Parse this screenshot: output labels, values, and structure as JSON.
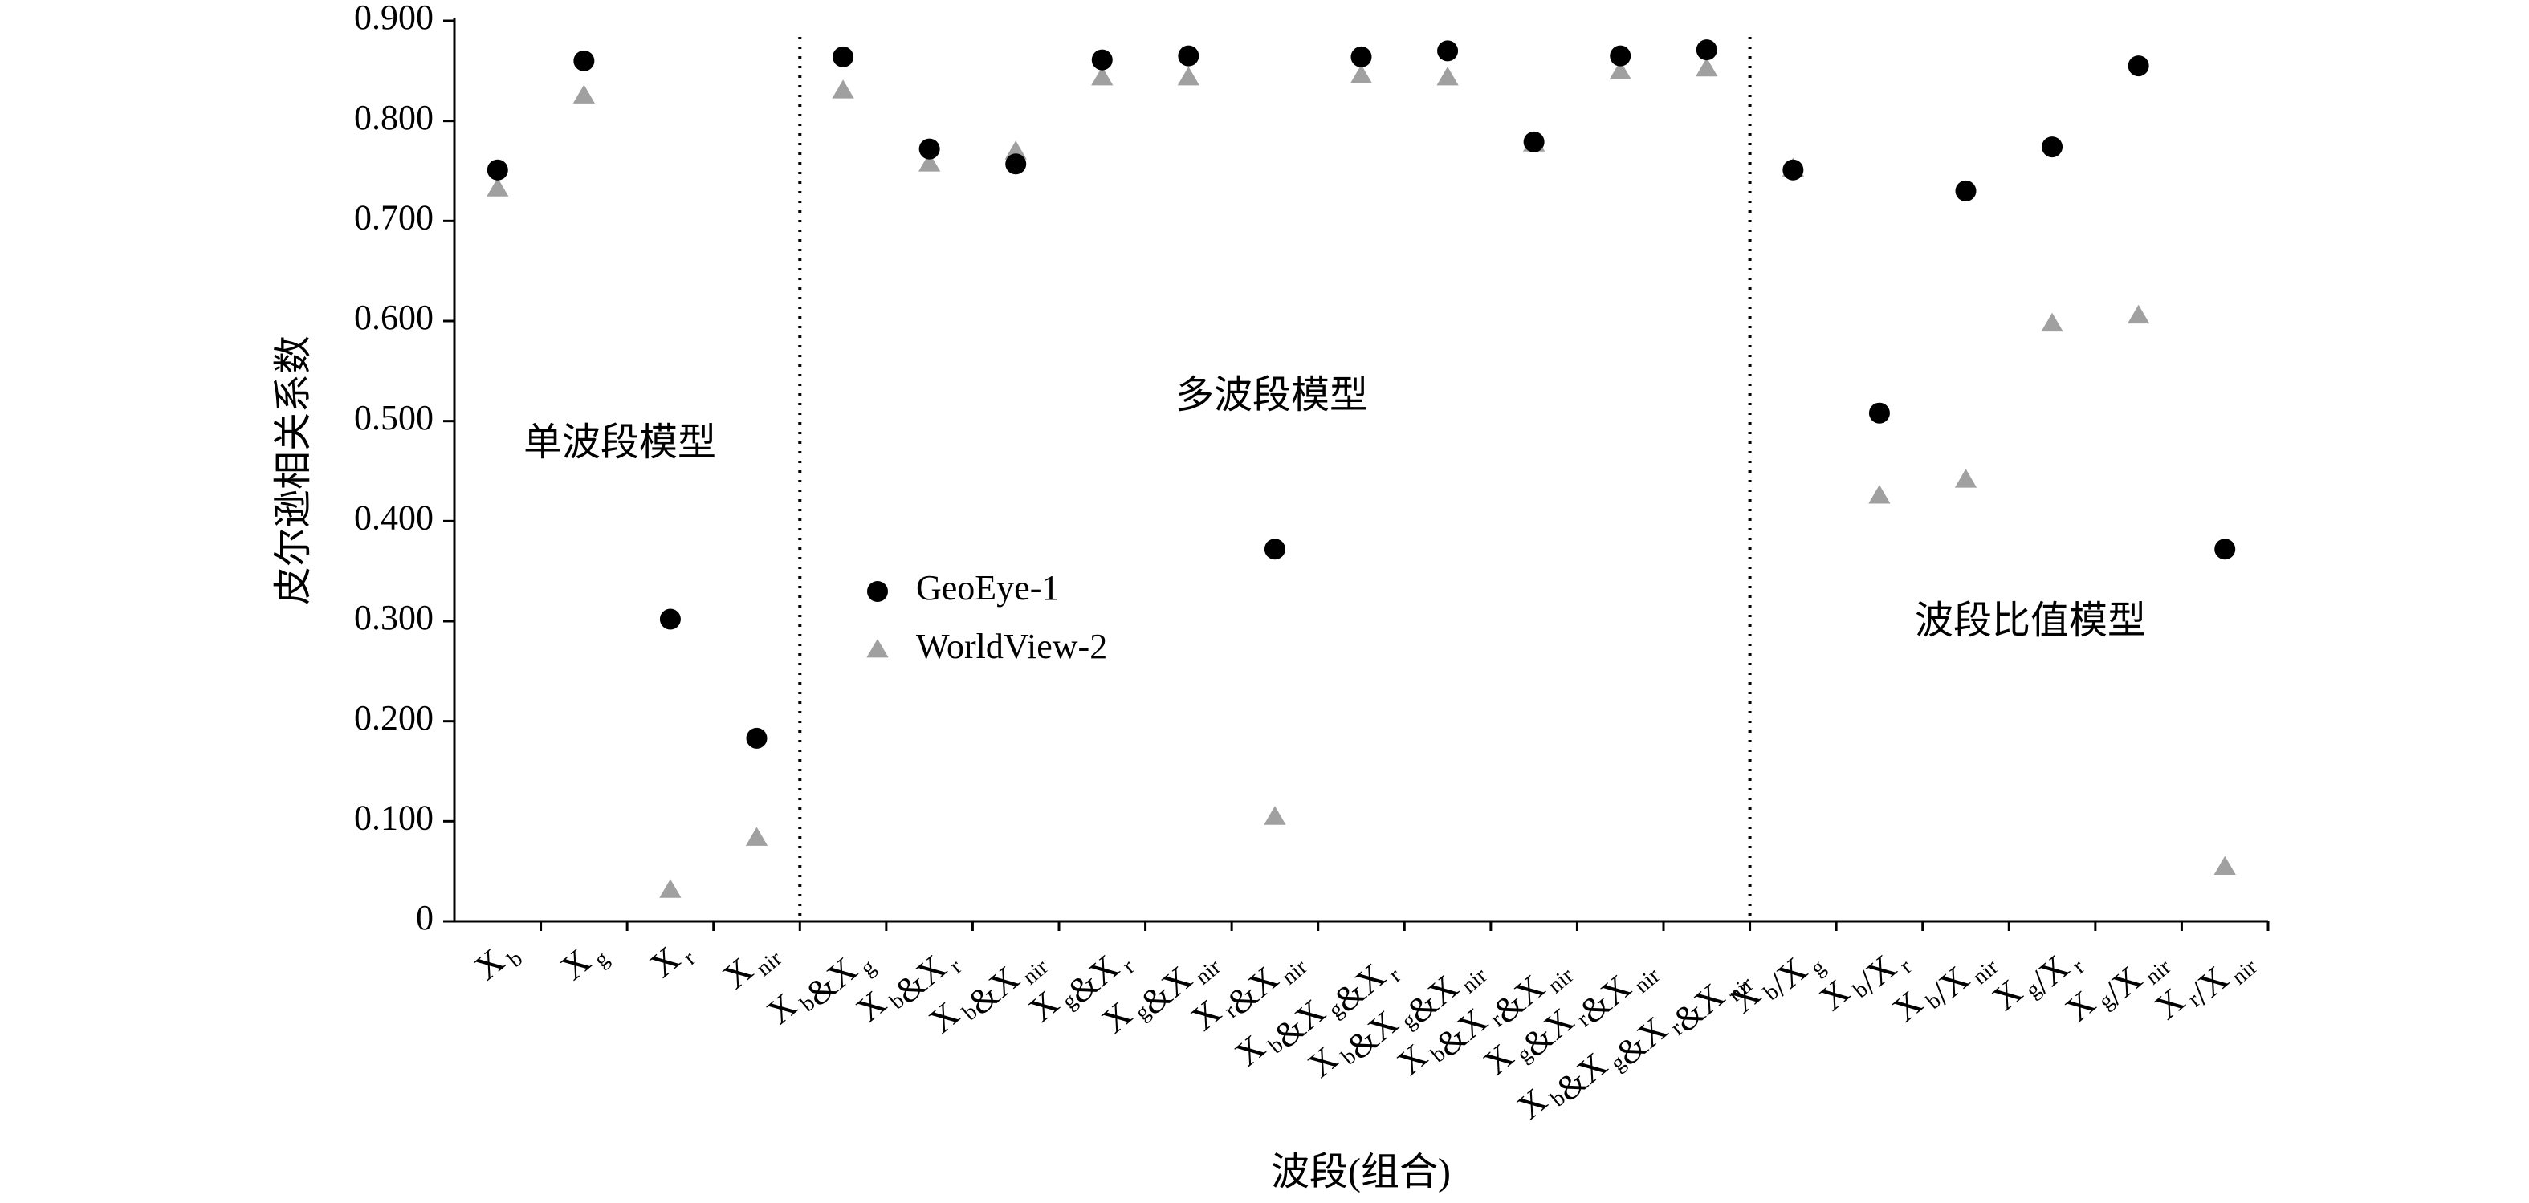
{
  "chart_data": {
    "type": "scatter",
    "y_label": "皮尔逊相关系数",
    "x_label": "波段(组合)",
    "annotations": [
      "单波段模型",
      "多波段模型",
      "波段比值模型"
    ],
    "categories": [
      "Xb",
      "Xg",
      "Xr",
      "Xnir",
      "Xb&Xg",
      "Xb&Xr",
      "Xb&Xnir",
      "Xg&Xr",
      "Xg&Xnir",
      "Xr&Xnir",
      "Xb&Xg&Xr",
      "Xb&Xg&Xnir",
      "Xb&Xr&Xnir",
      "Xg&Xr&Xnir",
      "Xb&Xg&Xr&Xnir",
      "Xb/Xg",
      "Xb/Xr",
      "Xb/Xnir",
      "Xg/Xr",
      "Xg/Xnir",
      "Xr/Xnir"
    ],
    "series": [
      {
        "name": "GeoEye-1",
        "color": "#000000",
        "marker": "circle",
        "values": [
          0.751,
          0.86,
          0.302,
          0.183,
          0.864,
          0.772,
          0.757,
          0.861,
          0.865,
          0.372,
          0.864,
          0.87,
          0.779,
          0.865,
          0.871,
          0.751,
          0.508,
          0.73,
          0.774,
          0.855,
          0.372
        ]
      },
      {
        "name": "WorldView-2",
        "color": "#a0a0a0",
        "marker": "triangle",
        "values": [
          0.732,
          0.825,
          0.031,
          0.083,
          0.83,
          0.757,
          0.769,
          0.843,
          0.843,
          0.104,
          0.845,
          0.843,
          0.777,
          0.849,
          0.852,
          0.752,
          0.425,
          0.441,
          0.597,
          0.605,
          0.054
        ]
      }
    ],
    "ylim": [
      0,
      0.9
    ],
    "yticks": [
      0,
      {
        "value": 0.1,
        "label": "0.100"
      },
      {
        "value": 0.2,
        "label": "0.200"
      },
      {
        "value": 0.3,
        "label": "0.300"
      },
      {
        "value": 0.4,
        "label": "0.400"
      },
      {
        "value": 0.5,
        "label": "0.500"
      },
      {
        "value": 0.6,
        "label": "0.600"
      },
      {
        "value": 0.7,
        "label": "0.700"
      },
      {
        "value": 0.8,
        "label": "0.800"
      },
      {
        "value": 0.9,
        "label": "0.900"
      }
    ],
    "grid": false
  }
}
